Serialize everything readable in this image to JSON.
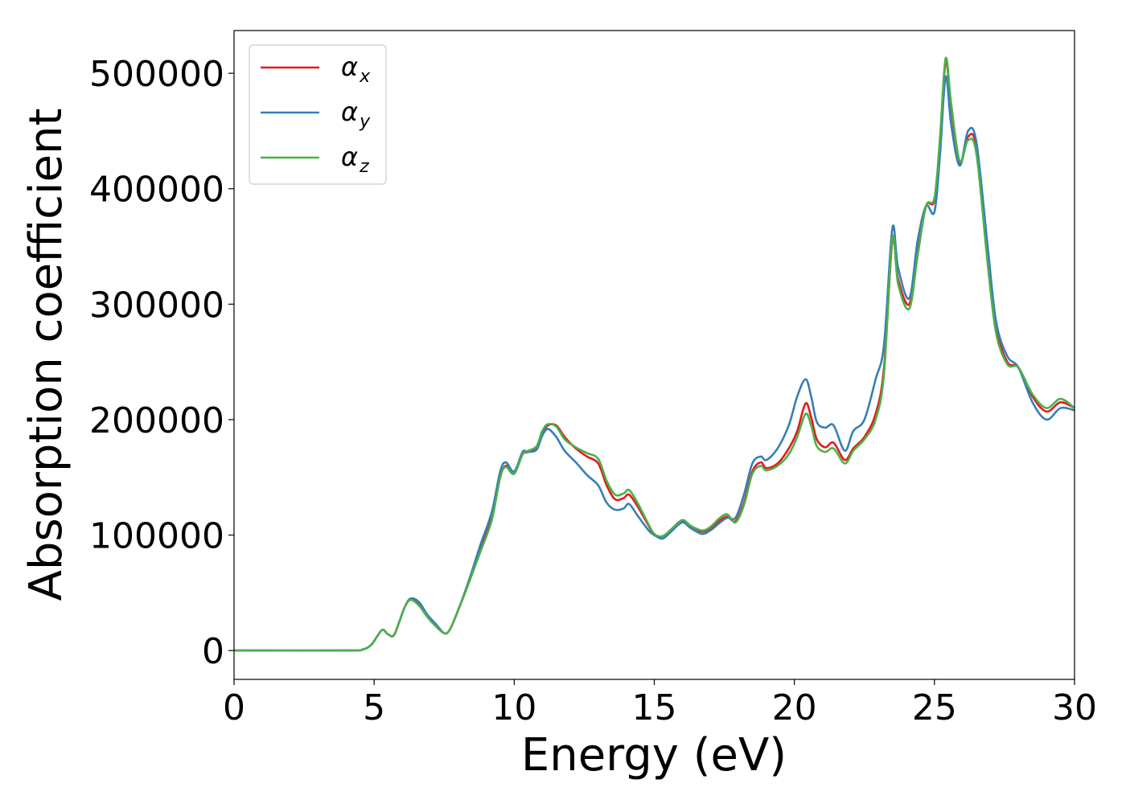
{
  "chart_data": {
    "type": "line",
    "title": "",
    "xlabel": "Energy (eV)",
    "ylabel": "Absorption coefficient",
    "xlim": [
      0,
      30
    ],
    "ylim": [
      -25000,
      537000
    ],
    "xticks": [
      0,
      5,
      10,
      15,
      20,
      25,
      30
    ],
    "xtick_labels": [
      "0",
      "5",
      "10",
      "15",
      "20",
      "25",
      "30"
    ],
    "yticks": [
      0,
      100000,
      200000,
      300000,
      400000,
      500000
    ],
    "ytick_labels": [
      "0",
      "100000",
      "200000",
      "300000",
      "400000",
      "500000"
    ],
    "grid": false,
    "legend_position": "top-left",
    "series": [
      {
        "name": "αx",
        "symbol": "α",
        "subscript": "x",
        "color": "#e41a1c",
        "points": [
          [
            0,
            0
          ],
          [
            4,
            0
          ],
          [
            4.6,
            1000
          ],
          [
            4.9,
            5000
          ],
          [
            5.1,
            12000
          ],
          [
            5.3,
            18000
          ],
          [
            5.5,
            14000
          ],
          [
            5.7,
            13000
          ],
          [
            5.9,
            25000
          ],
          [
            6.1,
            38000
          ],
          [
            6.3,
            44000
          ],
          [
            6.6,
            40000
          ],
          [
            6.9,
            30000
          ],
          [
            7.2,
            22000
          ],
          [
            7.5,
            15000
          ],
          [
            7.7,
            18000
          ],
          [
            8.0,
            35000
          ],
          [
            8.4,
            60000
          ],
          [
            8.8,
            88000
          ],
          [
            9.2,
            115000
          ],
          [
            9.5,
            150000
          ],
          [
            9.7,
            160000
          ],
          [
            10.0,
            155000
          ],
          [
            10.3,
            170000
          ],
          [
            10.5,
            172000
          ],
          [
            10.8,
            176000
          ],
          [
            11.0,
            188000
          ],
          [
            11.2,
            195000
          ],
          [
            11.5,
            195000
          ],
          [
            11.8,
            185000
          ],
          [
            12.2,
            175000
          ],
          [
            12.6,
            168000
          ],
          [
            13.0,
            162000
          ],
          [
            13.3,
            143000
          ],
          [
            13.6,
            131000
          ],
          [
            13.9,
            132000
          ],
          [
            14.1,
            135000
          ],
          [
            14.4,
            125000
          ],
          [
            14.8,
            108000
          ],
          [
            15.0,
            100000
          ],
          [
            15.3,
            99000
          ],
          [
            15.6,
            104000
          ],
          [
            16.0,
            112000
          ],
          [
            16.3,
            108000
          ],
          [
            16.7,
            103000
          ],
          [
            17.0,
            106000
          ],
          [
            17.3,
            112000
          ],
          [
            17.6,
            116000
          ],
          [
            17.9,
            112000
          ],
          [
            18.2,
            128000
          ],
          [
            18.5,
            155000
          ],
          [
            18.8,
            163000
          ],
          [
            19.0,
            158000
          ],
          [
            19.4,
            162000
          ],
          [
            19.8,
            175000
          ],
          [
            20.1,
            190000
          ],
          [
            20.4,
            214000
          ],
          [
            20.6,
            202000
          ],
          [
            20.8,
            183000
          ],
          [
            21.1,
            176000
          ],
          [
            21.4,
            180000
          ],
          [
            21.8,
            165000
          ],
          [
            22.1,
            175000
          ],
          [
            22.5,
            185000
          ],
          [
            22.9,
            205000
          ],
          [
            23.2,
            245000
          ],
          [
            23.5,
            355000
          ],
          [
            23.7,
            322000
          ],
          [
            24.1,
            300000
          ],
          [
            24.4,
            345000
          ],
          [
            24.7,
            385000
          ],
          [
            25.0,
            390000
          ],
          [
            25.2,
            440000
          ],
          [
            25.4,
            510000
          ],
          [
            25.6,
            470000
          ],
          [
            25.9,
            422000
          ],
          [
            26.2,
            445000
          ],
          [
            26.5,
            435000
          ],
          [
            26.9,
            340000
          ],
          [
            27.2,
            280000
          ],
          [
            27.6,
            250000
          ],
          [
            28.0,
            245000
          ],
          [
            28.5,
            220000
          ],
          [
            29.0,
            207000
          ],
          [
            29.5,
            215000
          ],
          [
            30,
            210000
          ]
        ]
      },
      {
        "name": "αy",
        "symbol": "α",
        "subscript": "y",
        "color": "#377eb8",
        "points": [
          [
            0,
            0
          ],
          [
            4,
            0
          ],
          [
            4.6,
            1000
          ],
          [
            4.9,
            5000
          ],
          [
            5.1,
            12000
          ],
          [
            5.3,
            18000
          ],
          [
            5.5,
            14000
          ],
          [
            5.7,
            13000
          ],
          [
            5.9,
            25000
          ],
          [
            6.1,
            38000
          ],
          [
            6.3,
            45000
          ],
          [
            6.6,
            42000
          ],
          [
            6.9,
            31000
          ],
          [
            7.2,
            23000
          ],
          [
            7.5,
            15000
          ],
          [
            7.7,
            18000
          ],
          [
            8.0,
            35000
          ],
          [
            8.4,
            62000
          ],
          [
            8.8,
            92000
          ],
          [
            9.2,
            120000
          ],
          [
            9.5,
            155000
          ],
          [
            9.7,
            163000
          ],
          [
            10.0,
            155000
          ],
          [
            10.3,
            172000
          ],
          [
            10.5,
            172000
          ],
          [
            10.8,
            174000
          ],
          [
            11.0,
            186000
          ],
          [
            11.2,
            192000
          ],
          [
            11.5,
            185000
          ],
          [
            11.8,
            173000
          ],
          [
            12.2,
            163000
          ],
          [
            12.6,
            152000
          ],
          [
            13.0,
            143000
          ],
          [
            13.3,
            128000
          ],
          [
            13.6,
            122000
          ],
          [
            13.9,
            123000
          ],
          [
            14.1,
            127000
          ],
          [
            14.4,
            117000
          ],
          [
            14.8,
            104000
          ],
          [
            15.0,
            100000
          ],
          [
            15.3,
            97000
          ],
          [
            15.6,
            103000
          ],
          [
            16.0,
            111000
          ],
          [
            16.3,
            106000
          ],
          [
            16.7,
            101000
          ],
          [
            17.0,
            104000
          ],
          [
            17.3,
            110000
          ],
          [
            17.6,
            115000
          ],
          [
            17.9,
            115000
          ],
          [
            18.2,
            135000
          ],
          [
            18.5,
            162000
          ],
          [
            18.8,
            168000
          ],
          [
            19.0,
            165000
          ],
          [
            19.4,
            175000
          ],
          [
            19.8,
            195000
          ],
          [
            20.1,
            220000
          ],
          [
            20.4,
            235000
          ],
          [
            20.6,
            220000
          ],
          [
            20.8,
            198000
          ],
          [
            21.1,
            193000
          ],
          [
            21.4,
            195000
          ],
          [
            21.8,
            173000
          ],
          [
            22.1,
            190000
          ],
          [
            22.5,
            200000
          ],
          [
            22.9,
            235000
          ],
          [
            23.2,
            265000
          ],
          [
            23.5,
            366000
          ],
          [
            23.7,
            332000
          ],
          [
            24.1,
            305000
          ],
          [
            24.4,
            355000
          ],
          [
            24.7,
            385000
          ],
          [
            25.0,
            380000
          ],
          [
            25.2,
            430000
          ],
          [
            25.4,
            497000
          ],
          [
            25.6,
            455000
          ],
          [
            25.9,
            420000
          ],
          [
            26.2,
            450000
          ],
          [
            26.5,
            440000
          ],
          [
            26.9,
            350000
          ],
          [
            27.2,
            285000
          ],
          [
            27.6,
            255000
          ],
          [
            28.0,
            245000
          ],
          [
            28.5,
            215000
          ],
          [
            29.0,
            200000
          ],
          [
            29.5,
            210000
          ],
          [
            30,
            208000
          ]
        ]
      },
      {
        "name": "αz",
        "symbol": "α",
        "subscript": "z",
        "color": "#4daf4a",
        "points": [
          [
            0,
            0
          ],
          [
            4,
            0
          ],
          [
            4.6,
            1000
          ],
          [
            4.9,
            5000
          ],
          [
            5.1,
            12000
          ],
          [
            5.3,
            18000
          ],
          [
            5.5,
            14000
          ],
          [
            5.7,
            13000
          ],
          [
            5.9,
            25000
          ],
          [
            6.1,
            38000
          ],
          [
            6.3,
            44000
          ],
          [
            6.6,
            39000
          ],
          [
            6.9,
            29000
          ],
          [
            7.2,
            21000
          ],
          [
            7.5,
            15000
          ],
          [
            7.7,
            18000
          ],
          [
            8.0,
            35000
          ],
          [
            8.4,
            60000
          ],
          [
            8.8,
            86000
          ],
          [
            9.2,
            113000
          ],
          [
            9.5,
            150000
          ],
          [
            9.7,
            159000
          ],
          [
            10.0,
            153000
          ],
          [
            10.3,
            170000
          ],
          [
            10.5,
            173000
          ],
          [
            10.8,
            177000
          ],
          [
            11.0,
            190000
          ],
          [
            11.2,
            196000
          ],
          [
            11.5,
            194000
          ],
          [
            11.8,
            183000
          ],
          [
            12.2,
            176000
          ],
          [
            12.6,
            171000
          ],
          [
            13.0,
            166000
          ],
          [
            13.3,
            147000
          ],
          [
            13.6,
            135000
          ],
          [
            13.9,
            136000
          ],
          [
            14.1,
            139000
          ],
          [
            14.4,
            128000
          ],
          [
            14.8,
            109000
          ],
          [
            15.0,
            101000
          ],
          [
            15.3,
            99000
          ],
          [
            15.6,
            105000
          ],
          [
            16.0,
            113000
          ],
          [
            16.3,
            108000
          ],
          [
            16.7,
            104000
          ],
          [
            17.0,
            107000
          ],
          [
            17.3,
            114000
          ],
          [
            17.6,
            118000
          ],
          [
            17.9,
            111000
          ],
          [
            18.2,
            126000
          ],
          [
            18.5,
            153000
          ],
          [
            18.8,
            160000
          ],
          [
            19.0,
            156000
          ],
          [
            19.4,
            160000
          ],
          [
            19.8,
            170000
          ],
          [
            20.1,
            185000
          ],
          [
            20.4,
            205000
          ],
          [
            20.6,
            195000
          ],
          [
            20.8,
            177000
          ],
          [
            21.1,
            172000
          ],
          [
            21.4,
            175000
          ],
          [
            21.8,
            162000
          ],
          [
            22.1,
            173000
          ],
          [
            22.5,
            183000
          ],
          [
            22.9,
            200000
          ],
          [
            23.2,
            240000
          ],
          [
            23.5,
            357000
          ],
          [
            23.7,
            318000
          ],
          [
            24.1,
            296000
          ],
          [
            24.4,
            342000
          ],
          [
            24.7,
            385000
          ],
          [
            25.0,
            392000
          ],
          [
            25.2,
            445000
          ],
          [
            25.4,
            513000
          ],
          [
            25.6,
            473000
          ],
          [
            25.9,
            424000
          ],
          [
            26.2,
            442000
          ],
          [
            26.5,
            430000
          ],
          [
            26.9,
            335000
          ],
          [
            27.2,
            275000
          ],
          [
            27.6,
            248000
          ],
          [
            28.0,
            245000
          ],
          [
            28.5,
            222000
          ],
          [
            29.0,
            210000
          ],
          [
            29.5,
            218000
          ],
          [
            30,
            210000
          ]
        ]
      }
    ]
  }
}
